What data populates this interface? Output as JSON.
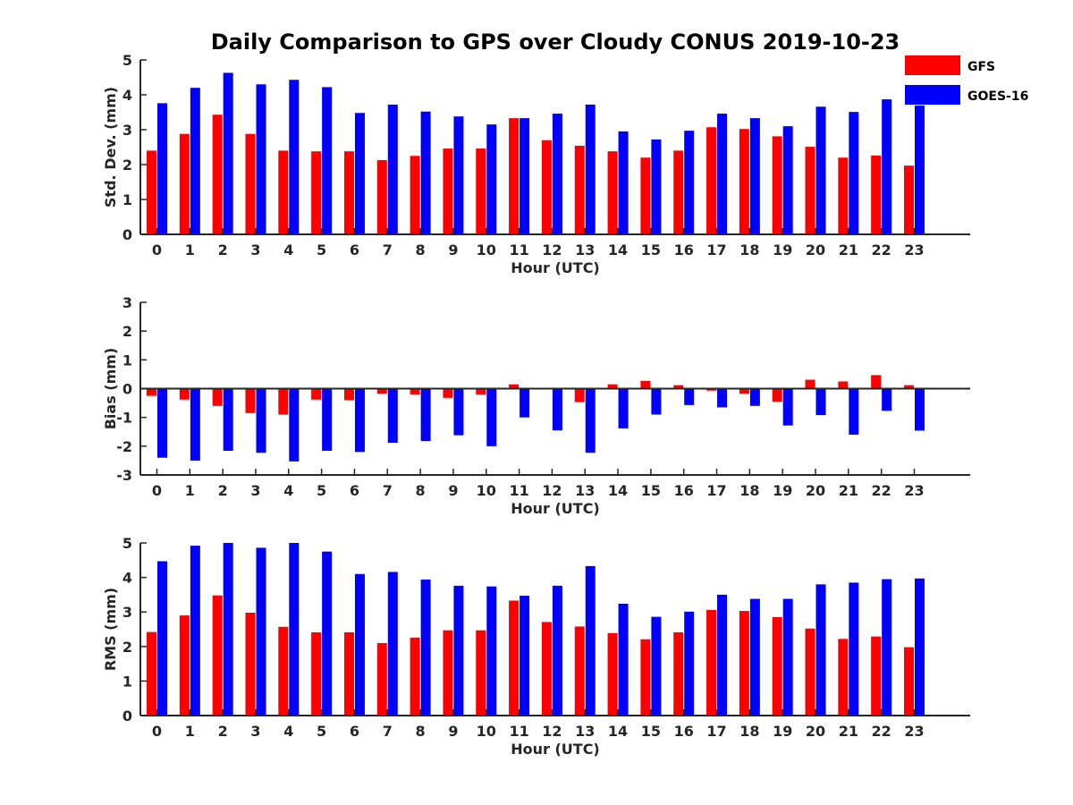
{
  "title": "Daily Comparison to GPS over Cloudy CONUS 2019-10-23",
  "colors": {
    "GFS": "#ff0000",
    "GOES-16": "#0000ff",
    "axis": "#262626",
    "text": "#262626"
  },
  "legend": {
    "placement": "top-right",
    "entries": [
      "GFS",
      "GOES-16"
    ]
  },
  "chart_data": [
    {
      "type": "bar",
      "xlabel": "Hour (UTC)",
      "ylabel": "Std. Dev. (mm)",
      "ylim": [
        0,
        5
      ],
      "yticks": [
        0,
        1,
        2,
        3,
        4,
        5
      ],
      "grid": false,
      "categories": [
        "0",
        "1",
        "2",
        "3",
        "4",
        "5",
        "6",
        "7",
        "8",
        "9",
        "10",
        "11",
        "12",
        "13",
        "14",
        "15",
        "16",
        "17",
        "18",
        "19",
        "20",
        "21",
        "22",
        "23"
      ],
      "series": [
        {
          "name": "GFS",
          "values": [
            2.4,
            2.88,
            3.43,
            2.88,
            2.4,
            2.38,
            2.38,
            2.13,
            2.25,
            2.46,
            2.46,
            3.33,
            2.7,
            2.54,
            2.38,
            2.2,
            2.4,
            3.07,
            3.02,
            2.81,
            2.51,
            2.2,
            2.26,
            1.97
          ]
        },
        {
          "name": "GOES-16",
          "values": [
            3.76,
            4.2,
            4.63,
            4.3,
            4.43,
            4.22,
            3.48,
            3.72,
            3.52,
            3.38,
            3.15,
            3.33,
            3.46,
            3.72,
            2.95,
            2.72,
            2.97,
            3.46,
            3.33,
            3.1,
            3.66,
            3.51,
            3.87,
            3.69
          ]
        }
      ]
    },
    {
      "type": "bar",
      "xlabel": "Hour (UTC)",
      "ylabel": "Bias (mm)",
      "ylim": [
        -3,
        3
      ],
      "yticks": [
        -3,
        -2,
        -1,
        0,
        1,
        2,
        3
      ],
      "grid": false,
      "zero_line": true,
      "categories": [
        "0",
        "1",
        "2",
        "3",
        "4",
        "5",
        "6",
        "7",
        "8",
        "9",
        "10",
        "11",
        "12",
        "13",
        "14",
        "15",
        "16",
        "17",
        "18",
        "19",
        "20",
        "21",
        "22",
        "23"
      ],
      "series": [
        {
          "name": "GFS",
          "values": [
            -0.25,
            -0.38,
            -0.6,
            -0.85,
            -0.9,
            -0.38,
            -0.4,
            -0.18,
            -0.2,
            -0.32,
            -0.2,
            0.15,
            0.03,
            -0.47,
            0.15,
            0.27,
            0.12,
            -0.07,
            -0.18,
            -0.45,
            0.31,
            0.25,
            0.47,
            0.12
          ]
        },
        {
          "name": "GOES-16",
          "values": [
            -2.4,
            -2.5,
            -2.16,
            -2.23,
            -2.53,
            -2.16,
            -2.2,
            -1.88,
            -1.82,
            -1.62,
            -2.0,
            -1.0,
            -1.45,
            -2.23,
            -1.38,
            -0.9,
            -0.57,
            -0.65,
            -0.6,
            -1.28,
            -0.92,
            -1.6,
            -0.77,
            -1.46
          ]
        }
      ]
    },
    {
      "type": "bar",
      "xlabel": "Hour (UTC)",
      "ylabel": "RMS (mm)",
      "ylim": [
        0,
        5
      ],
      "yticks": [
        0,
        1,
        2,
        3,
        4,
        5
      ],
      "grid": false,
      "categories": [
        "0",
        "1",
        "2",
        "3",
        "4",
        "5",
        "6",
        "7",
        "8",
        "9",
        "10",
        "11",
        "12",
        "13",
        "14",
        "15",
        "16",
        "17",
        "18",
        "19",
        "20",
        "21",
        "22",
        "23"
      ],
      "series": [
        {
          "name": "GFS",
          "values": [
            2.42,
            2.9,
            3.48,
            2.98,
            2.57,
            2.41,
            2.41,
            2.1,
            2.26,
            2.47,
            2.47,
            3.33,
            2.71,
            2.58,
            2.39,
            2.21,
            2.41,
            3.06,
            3.03,
            2.85,
            2.52,
            2.22,
            2.29,
            1.98
          ]
        },
        {
          "name": "GOES-16",
          "values": [
            4.47,
            4.92,
            5.0,
            4.86,
            5.0,
            4.75,
            4.1,
            4.16,
            3.94,
            3.76,
            3.74,
            3.47,
            3.76,
            4.33,
            3.24,
            2.86,
            3.01,
            3.5,
            3.38,
            3.38,
            3.8,
            3.85,
            3.95,
            3.97
          ]
        }
      ]
    }
  ]
}
